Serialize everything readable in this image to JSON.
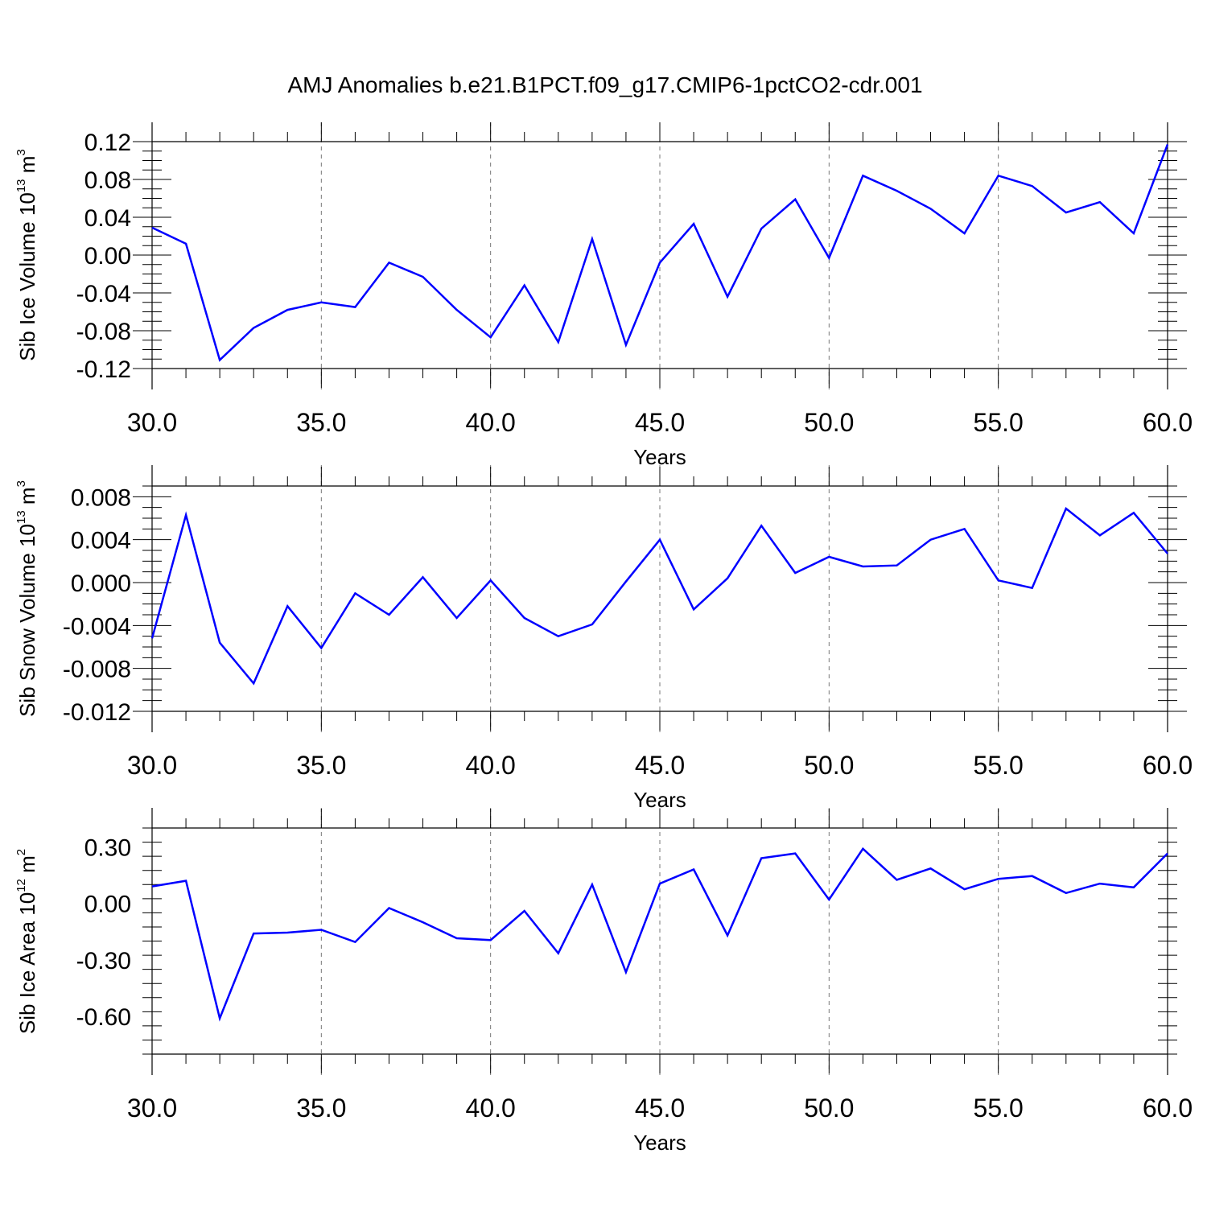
{
  "title": "AMJ Anomalies b.e21.B1PCT.f09_g17.CMIP6-1pctCO2-cdr.001",
  "colors": {
    "series": "#0000ff",
    "axis": "#000000",
    "grid": "#777777"
  },
  "chart_data": [
    {
      "type": "line",
      "ylabel": {
        "text": "Sib Ice Volume 10",
        "exp1": "13",
        "mid": " m",
        "exp2": "3"
      },
      "xlabel": "Years",
      "xlim": [
        30,
        60
      ],
      "ylim": [
        -0.12,
        0.12
      ],
      "xticks": [
        "30.0",
        "35.0",
        "40.0",
        "45.0",
        "50.0",
        "55.0",
        "60.0"
      ],
      "yticks": [
        "0.12",
        "0.08",
        "0.04",
        "0.00",
        "-0.04",
        "-0.08",
        "-0.12"
      ],
      "grid": "vertical-dashed",
      "x": [
        30,
        31,
        32,
        33,
        34,
        35,
        36,
        37,
        38,
        39,
        40,
        41,
        42,
        43,
        44,
        45,
        46,
        47,
        48,
        49,
        50,
        51,
        52,
        53,
        54,
        55,
        56,
        57,
        58,
        59,
        60
      ],
      "values": [
        0.029,
        0.012,
        -0.111,
        -0.077,
        -0.058,
        -0.05,
        -0.055,
        -0.008,
        -0.023,
        -0.058,
        -0.087,
        -0.032,
        -0.092,
        0.017,
        -0.095,
        -0.008,
        0.033,
        -0.044,
        0.028,
        0.059,
        -0.003,
        0.084,
        0.068,
        0.049,
        0.023,
        0.084,
        0.073,
        0.045,
        0.056,
        0.023,
        0.117
      ]
    },
    {
      "type": "line",
      "ylabel": {
        "text": "Sib Snow Volume 10",
        "exp1": "13",
        "mid": " m",
        "exp2": "3"
      },
      "xlabel": "Years",
      "xlim": [
        30,
        60
      ],
      "ylim": [
        -0.012,
        0.009
      ],
      "xticks": [
        "30.0",
        "35.0",
        "40.0",
        "45.0",
        "50.0",
        "55.0",
        "60.0"
      ],
      "yticks": [
        "0.008",
        "0.004",
        "0.000",
        "-0.004",
        "-0.008",
        "-0.012"
      ],
      "grid": "vertical-dashed",
      "x": [
        30,
        31,
        32,
        33,
        34,
        35,
        36,
        37,
        38,
        39,
        40,
        41,
        42,
        43,
        44,
        45,
        46,
        47,
        48,
        49,
        50,
        51,
        52,
        53,
        54,
        55,
        56,
        57,
        58,
        59,
        60
      ],
      "values": [
        -0.0052,
        0.0063,
        -0.0056,
        -0.0094,
        -0.0022,
        -0.0061,
        -0.001,
        -0.003,
        0.0005,
        -0.0033,
        0.0002,
        -0.0033,
        -0.005,
        -0.0039,
        0.0001,
        0.004,
        -0.0025,
        0.0004,
        0.0053,
        0.0009,
        0.0024,
        0.0015,
        0.0016,
        0.004,
        0.005,
        0.0002,
        -0.0005,
        0.0069,
        0.0044,
        0.0065,
        0.0027
      ]
    },
    {
      "type": "line",
      "ylabel": {
        "text": "Sib Ice Area 10",
        "exp1": "12",
        "mid": " m",
        "exp2": "2"
      },
      "xlabel": "Years",
      "xlim": [
        30,
        60
      ],
      "ylim": [
        -0.8,
        0.4
      ],
      "xticks": [
        "30.0",
        "35.0",
        "40.0",
        "45.0",
        "50.0",
        "55.0",
        "60.0"
      ],
      "yticks": [
        "0.30",
        "0.00",
        "-0.30",
        "-0.60"
      ],
      "grid": "vertical-dashed",
      "x": [
        30,
        31,
        32,
        33,
        34,
        35,
        36,
        37,
        38,
        39,
        40,
        41,
        42,
        43,
        44,
        45,
        46,
        47,
        48,
        49,
        50,
        51,
        52,
        53,
        54,
        55,
        56,
        57,
        58,
        59,
        60
      ],
      "values": [
        0.09,
        0.12,
        -0.61,
        -0.16,
        -0.155,
        -0.14,
        -0.205,
        -0.025,
        -0.1,
        -0.185,
        -0.195,
        -0.04,
        -0.265,
        0.1,
        -0.365,
        0.105,
        0.18,
        -0.17,
        0.24,
        0.265,
        0.02,
        0.29,
        0.125,
        0.185,
        0.075,
        0.13,
        0.145,
        0.055,
        0.105,
        0.085,
        0.265
      ]
    }
  ]
}
